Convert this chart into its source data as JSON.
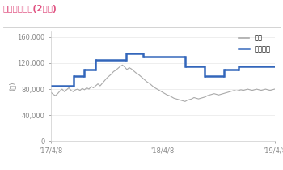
{
  "title": "목표주가추이(2개년)",
  "title_color": "#e05080",
  "ylabel": "(원)",
  "background_color": "#ffffff",
  "plot_bg_color": "#ffffff",
  "ylim": [
    0,
    170000
  ],
  "yticks": [
    0,
    40000,
    80000,
    120000,
    160000
  ],
  "ytick_labels": [
    "0",
    "40,000",
    "80,000",
    "120,000",
    "160,000"
  ],
  "xtick_labels": [
    "'17/4/8",
    "'18/4/8",
    "'19/4/8"
  ],
  "legend_items": [
    "주가",
    "목표주가"
  ],
  "legend_colors": [
    "#aaaaaa",
    "#3366bb"
  ],
  "stock_price_color": "#aaaaaa",
  "target_price_color": "#3366bb",
  "target_price_segments": [
    {
      "x_start": 0,
      "x_end": 40,
      "y": 85000
    },
    {
      "x_start": 40,
      "x_end": 60,
      "y": 100000
    },
    {
      "x_start": 60,
      "x_end": 80,
      "y": 110000
    },
    {
      "x_start": 80,
      "x_end": 135,
      "y": 125000
    },
    {
      "x_start": 135,
      "x_end": 165,
      "y": 135000
    },
    {
      "x_start": 165,
      "x_end": 240,
      "y": 130000
    },
    {
      "x_start": 240,
      "x_end": 275,
      "y": 115000
    },
    {
      "x_start": 275,
      "x_end": 310,
      "y": 100000
    },
    {
      "x_start": 310,
      "x_end": 335,
      "y": 110000
    },
    {
      "x_start": 335,
      "x_end": 400,
      "y": 115000
    }
  ],
  "stock_price_data": [
    [
      0,
      75000
    ],
    [
      4,
      72000
    ],
    [
      8,
      70000
    ],
    [
      12,
      73000
    ],
    [
      16,
      77000
    ],
    [
      20,
      80000
    ],
    [
      24,
      76000
    ],
    [
      28,
      79000
    ],
    [
      32,
      82000
    ],
    [
      36,
      78000
    ],
    [
      40,
      76000
    ],
    [
      44,
      79000
    ],
    [
      48,
      80000
    ],
    [
      52,
      78000
    ],
    [
      56,
      81000
    ],
    [
      60,
      79000
    ],
    [
      64,
      82000
    ],
    [
      68,
      80000
    ],
    [
      72,
      84000
    ],
    [
      76,
      82000
    ],
    [
      80,
      85000
    ],
    [
      84,
      88000
    ],
    [
      88,
      85000
    ],
    [
      92,
      89000
    ],
    [
      96,
      93000
    ],
    [
      100,
      97000
    ],
    [
      104,
      100000
    ],
    [
      108,
      103000
    ],
    [
      112,
      107000
    ],
    [
      116,
      109000
    ],
    [
      120,
      112000
    ],
    [
      124,
      115000
    ],
    [
      128,
      117000
    ],
    [
      132,
      114000
    ],
    [
      136,
      110000
    ],
    [
      140,
      113000
    ],
    [
      144,
      111000
    ],
    [
      148,
      108000
    ],
    [
      152,
      105000
    ],
    [
      156,
      103000
    ],
    [
      160,
      100000
    ],
    [
      164,
      97000
    ],
    [
      168,
      94000
    ],
    [
      172,
      91000
    ],
    [
      176,
      89000
    ],
    [
      180,
      86000
    ],
    [
      184,
      83000
    ],
    [
      188,
      81000
    ],
    [
      192,
      79000
    ],
    [
      196,
      77000
    ],
    [
      200,
      75000
    ],
    [
      204,
      73000
    ],
    [
      208,
      71000
    ],
    [
      212,
      70000
    ],
    [
      216,
      68000
    ],
    [
      220,
      66000
    ],
    [
      224,
      65000
    ],
    [
      228,
      64000
    ],
    [
      232,
      63000
    ],
    [
      236,
      62000
    ],
    [
      240,
      61000
    ],
    [
      244,
      63000
    ],
    [
      248,
      64000
    ],
    [
      252,
      65000
    ],
    [
      256,
      67000
    ],
    [
      260,
      66000
    ],
    [
      264,
      65000
    ],
    [
      268,
      66000
    ],
    [
      272,
      67000
    ],
    [
      276,
      68000
    ],
    [
      280,
      70000
    ],
    [
      284,
      71000
    ],
    [
      288,
      72000
    ],
    [
      292,
      73000
    ],
    [
      296,
      72000
    ],
    [
      300,
      71000
    ],
    [
      304,
      72000
    ],
    [
      308,
      73000
    ],
    [
      312,
      74000
    ],
    [
      316,
      75000
    ],
    [
      320,
      76000
    ],
    [
      324,
      77000
    ],
    [
      328,
      78000
    ],
    [
      332,
      77000
    ],
    [
      336,
      78000
    ],
    [
      340,
      79000
    ],
    [
      344,
      78000
    ],
    [
      348,
      79000
    ],
    [
      352,
      80000
    ],
    [
      356,
      79000
    ],
    [
      360,
      78000
    ],
    [
      364,
      79000
    ],
    [
      368,
      80000
    ],
    [
      372,
      79000
    ],
    [
      376,
      78000
    ],
    [
      380,
      79000
    ],
    [
      384,
      80000
    ],
    [
      388,
      79000
    ],
    [
      392,
      78000
    ],
    [
      396,
      79000
    ],
    [
      400,
      80000
    ]
  ],
  "x_total": 400,
  "x_tick_positions": [
    0,
    200,
    400
  ],
  "border_color": "#cccccc",
  "grid_color": "#e8e8e8",
  "title_line_color": "#cccccc",
  "tick_color": "#888888",
  "tick_fontsize": 6.0,
  "ylabel_fontsize": 6.0
}
